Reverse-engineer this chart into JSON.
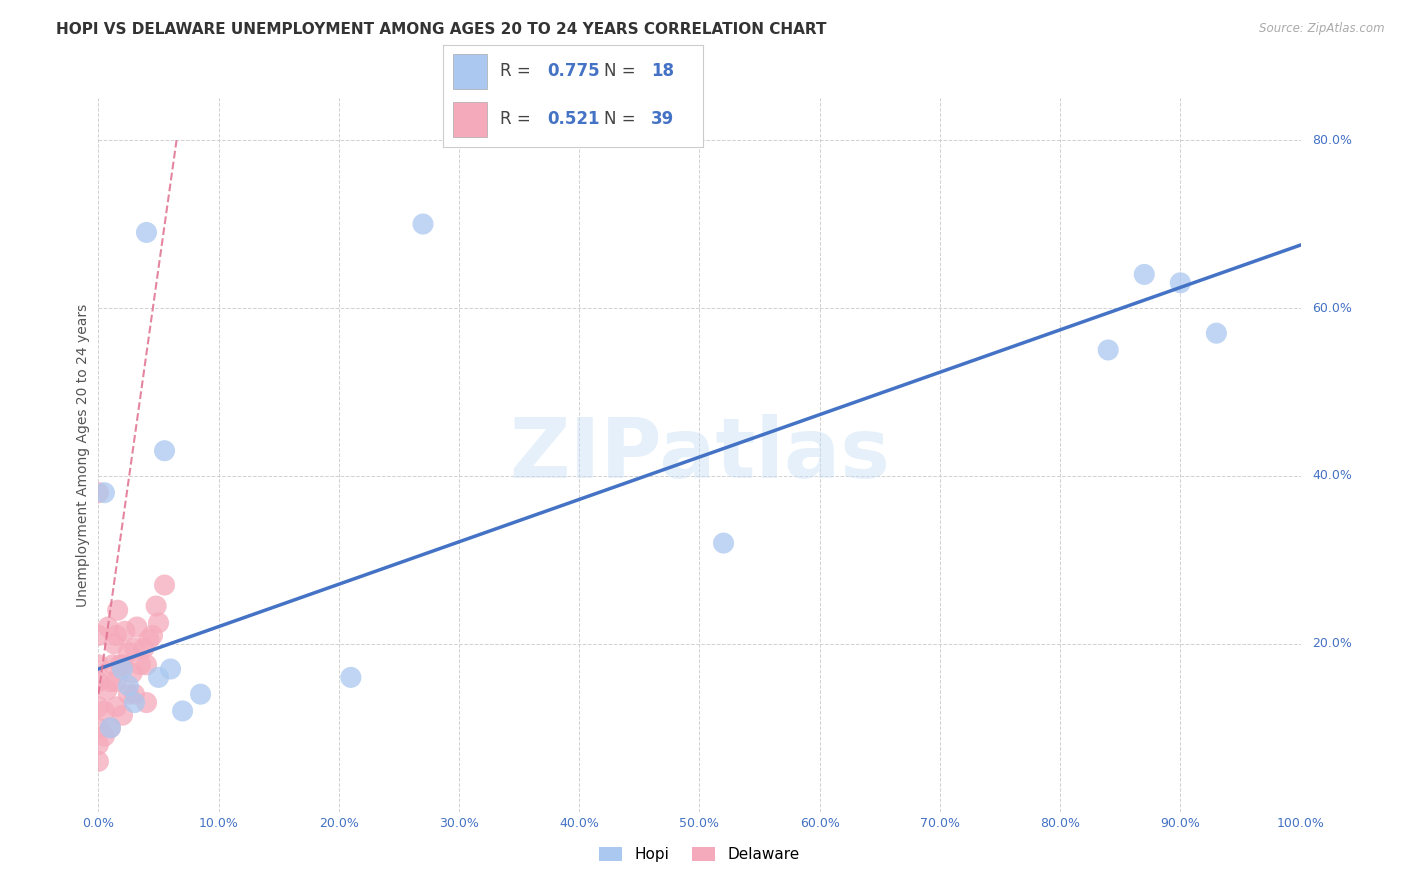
{
  "title": "HOPI VS DELAWARE UNEMPLOYMENT AMONG AGES 20 TO 24 YEARS CORRELATION CHART",
  "source": "Source: ZipAtlas.com",
  "ylabel": "Unemployment Among Ages 20 to 24 years",
  "xlim": [
    0.0,
    1.0
  ],
  "ylim": [
    0.0,
    0.85
  ],
  "xticks": [
    0.0,
    0.1,
    0.2,
    0.3,
    0.4,
    0.5,
    0.6,
    0.7,
    0.8,
    0.9,
    1.0
  ],
  "xtick_labels": [
    "0.0%",
    "10.0%",
    "20.0%",
    "30.0%",
    "40.0%",
    "50.0%",
    "60.0%",
    "70.0%",
    "80.0%",
    "90.0%",
    "100.0%"
  ],
  "yticks": [
    0.0,
    0.2,
    0.4,
    0.6,
    0.8
  ],
  "ytick_labels": [
    "",
    "20.0%",
    "40.0%",
    "60.0%",
    "80.0%"
  ],
  "hopi_R": "0.775",
  "hopi_N": "18",
  "delaware_R": "0.521",
  "delaware_N": "39",
  "hopi_scatter_color": "#aac8f0",
  "delaware_scatter_color": "#f5aabb",
  "hopi_line_color": "#4472c4",
  "delaware_line_color": "#e07090",
  "watermark": "ZIPatlas",
  "hopi_x": [
    0.005,
    0.01,
    0.02,
    0.025,
    0.03,
    0.04,
    0.05,
    0.055,
    0.06,
    0.07,
    0.085,
    0.21,
    0.27,
    0.52,
    0.84,
    0.87,
    0.9,
    0.93
  ],
  "hopi_y": [
    0.38,
    0.1,
    0.17,
    0.15,
    0.13,
    0.69,
    0.16,
    0.43,
    0.17,
    0.12,
    0.14,
    0.16,
    0.7,
    0.32,
    0.55,
    0.64,
    0.63,
    0.57
  ],
  "del_x": [
    0.0,
    0.0,
    0.0,
    0.0,
    0.0,
    0.0,
    0.0,
    0.0,
    0.005,
    0.005,
    0.007,
    0.008,
    0.01,
    0.01,
    0.012,
    0.013,
    0.015,
    0.015,
    0.015,
    0.016,
    0.018,
    0.02,
    0.02,
    0.022,
    0.025,
    0.025,
    0.028,
    0.03,
    0.03,
    0.032,
    0.035,
    0.038,
    0.04,
    0.04,
    0.042,
    0.045,
    0.048,
    0.05,
    0.055
  ],
  "del_y": [
    0.06,
    0.08,
    0.1,
    0.125,
    0.155,
    0.175,
    0.21,
    0.38,
    0.09,
    0.12,
    0.145,
    0.22,
    0.1,
    0.155,
    0.175,
    0.2,
    0.125,
    0.155,
    0.21,
    0.24,
    0.175,
    0.115,
    0.175,
    0.215,
    0.14,
    0.19,
    0.165,
    0.14,
    0.195,
    0.22,
    0.175,
    0.195,
    0.13,
    0.175,
    0.205,
    0.21,
    0.245,
    0.225,
    0.27
  ],
  "hopi_line_x0": 0.0,
  "hopi_line_x1": 1.0,
  "hopi_line_y0": 0.17,
  "hopi_line_y1": 0.675,
  "del_line_x0": 0.0,
  "del_line_x1": 0.065,
  "del_line_y0": 0.14,
  "del_line_y1": 0.8,
  "background_color": "#ffffff",
  "grid_color": "#cccccc",
  "title_fontsize": 11,
  "tick_fontsize": 9,
  "label_fontsize": 10,
  "tick_color": "#4472c4",
  "legend_text_color_hopi": "#4472c4",
  "legend_text_color_delaware": "#4472c4"
}
